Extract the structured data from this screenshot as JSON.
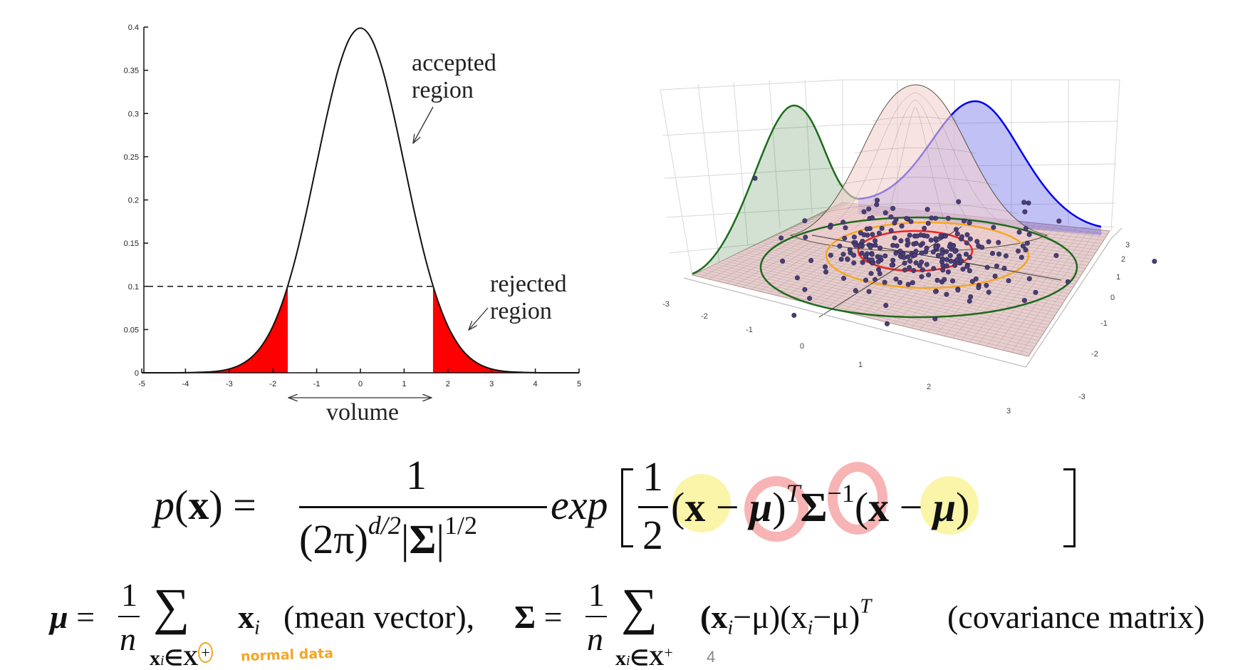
{
  "chart_data": [
    {
      "type": "line",
      "title": "",
      "xlabel": "",
      "ylabel": "",
      "xlim": [
        -5,
        5
      ],
      "ylim": [
        0,
        0.4
      ],
      "grid": false,
      "xticks": [
        "-5",
        "-4",
        "-3",
        "-2",
        "-1",
        "0",
        "1",
        "2",
        "3",
        "4",
        "5"
      ],
      "yticks": [
        "0",
        "0.05",
        "0.1",
        "0.15",
        "0.2",
        "0.25",
        "0.3",
        "0.35",
        "0.4"
      ],
      "threshold": 0.1,
      "rejected_boundary": 1.66,
      "fill_color": "#ff0000",
      "x": [
        -5,
        -4.75,
        -4.5,
        -4.25,
        -4,
        -3.75,
        -3.5,
        -3.25,
        -3,
        -2.75,
        -2.5,
        -2.25,
        -2,
        -1.75,
        -1.5,
        -1.25,
        -1,
        -0.75,
        -0.5,
        -0.25,
        0,
        0.25,
        0.5,
        0.75,
        1,
        1.25,
        1.5,
        1.75,
        2,
        2.25,
        2.5,
        2.75,
        3,
        3.25,
        3.5,
        3.75,
        4,
        4.25,
        4.5,
        4.75,
        5
      ],
      "y": [
        0,
        0,
        0,
        0,
        0.0001,
        0.0004,
        0.0009,
        0.002,
        0.0044,
        0.0091,
        0.0175,
        0.0317,
        0.054,
        0.0863,
        0.1295,
        0.1826,
        0.242,
        0.3011,
        0.3521,
        0.3867,
        0.3989,
        0.3867,
        0.3521,
        0.3011,
        0.242,
        0.1826,
        0.1295,
        0.0863,
        0.054,
        0.0317,
        0.0175,
        0.0091,
        0.0044,
        0.002,
        0.0009,
        0.0004,
        0.0001,
        0,
        0,
        0,
        0
      ],
      "annotations": {
        "accepted": [
          "accepted",
          "region"
        ],
        "rejected": [
          "rejected",
          "region"
        ],
        "volume": "volume"
      }
    },
    {
      "type": "scatter",
      "title": "",
      "x_ticks": [
        "-3",
        "-2",
        "-1",
        "0",
        "1",
        "2",
        "3"
      ],
      "y_ticks": [
        "3",
        "2",
        "1",
        "0",
        "-1",
        "-2",
        "-3"
      ],
      "colors": {
        "x_marginal": "#1e6b1e",
        "y_marginal": "#0000ee",
        "surface": "#f4d0d0",
        "contour_outer": "#1e6b1e",
        "contour_mid": "#f5a623",
        "contour_inner": "#ee2222",
        "points": "#4a3f75"
      }
    }
  ],
  "formula_main": {
    "lhs_p": "p",
    "lhs_x": "x",
    "lhs_rest": ") =",
    "lhs_open": "(",
    "num": "1",
    "den_a": "(2π)",
    "den_a_sup": "d/2",
    "den_sigma": "Σ",
    "den_sup": "1/2",
    "exp": "exp",
    "half_num": "1",
    "half_den": "2",
    "open1": "(",
    "x1": "x",
    "minus1": " − ",
    "mu1": "μ",
    "close1": ")",
    "T": "T",
    "sigma": "Σ",
    "inv": "−1",
    "open2": "(",
    "x2": "x",
    "minus2": " − ",
    "mu2": "μ",
    "close2": ")"
  },
  "formula_mean": {
    "mu": "μ",
    "eq": " =",
    "num": "1",
    "den": "n",
    "sum": "∑",
    "sub_x": "x",
    "sub_i": "i",
    "sub_in": "∈X",
    "sub_plus": "+",
    "term_x": "x",
    "term_i": "i",
    "label": "(mean vector),"
  },
  "formula_cov": {
    "sigma": "Σ",
    "eq": " =",
    "num": "1",
    "den": "n",
    "sum": "∑",
    "sub_x": "x",
    "sub_i": "i",
    "sub_in": "∈X",
    "sub_plus": "+",
    "term": "(x",
    "term_i": "i",
    "term_mid": "−μ)(x",
    "term_i2": "i",
    "term_end": "−μ)",
    "term_T": "T",
    "label": "(covariance matrix)"
  },
  "handwritten_note": "normal data",
  "page_number": "4",
  "highlight_colors": {
    "yellow": "#f9f39a",
    "pink": "#f8b4b4",
    "orange": "#f5a623"
  }
}
